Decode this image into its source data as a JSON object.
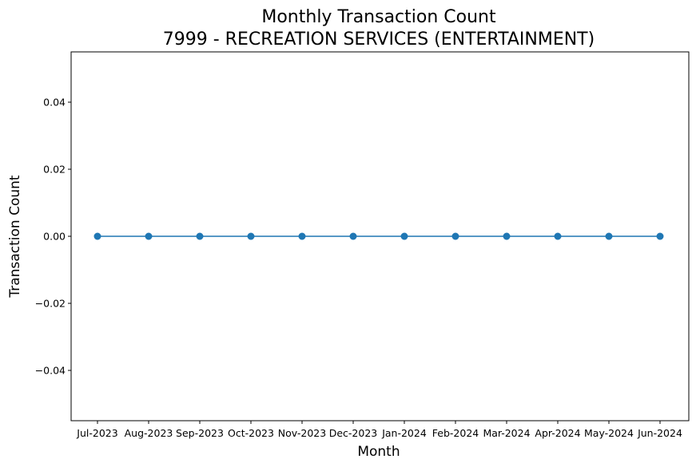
{
  "chart_data": {
    "type": "line",
    "title_line1": "Monthly Transaction Count",
    "title_line2": "7999 - RECREATION SERVICES (ENTERTAINMENT)",
    "xlabel": "Month",
    "ylabel": "Transaction Count",
    "categories": [
      "Jul-2023",
      "Aug-2023",
      "Sep-2023",
      "Oct-2023",
      "Nov-2023",
      "Dec-2023",
      "Jan-2024",
      "Feb-2024",
      "Mar-2024",
      "Apr-2024",
      "May-2024",
      "Jun-2024"
    ],
    "series": [
      {
        "values": [
          0,
          0,
          0,
          0,
          0,
          0,
          0,
          0,
          0,
          0,
          0,
          0
        ],
        "color": "#1f77b4"
      }
    ],
    "ylim": [
      -0.055,
      0.055
    ],
    "yticks": [
      -0.04,
      -0.02,
      0.0,
      0.02,
      0.04
    ],
    "ytick_labels": [
      "−0.04",
      "−0.02",
      "0.00",
      "0.02",
      "0.04"
    ],
    "grid": false,
    "legend": false
  }
}
